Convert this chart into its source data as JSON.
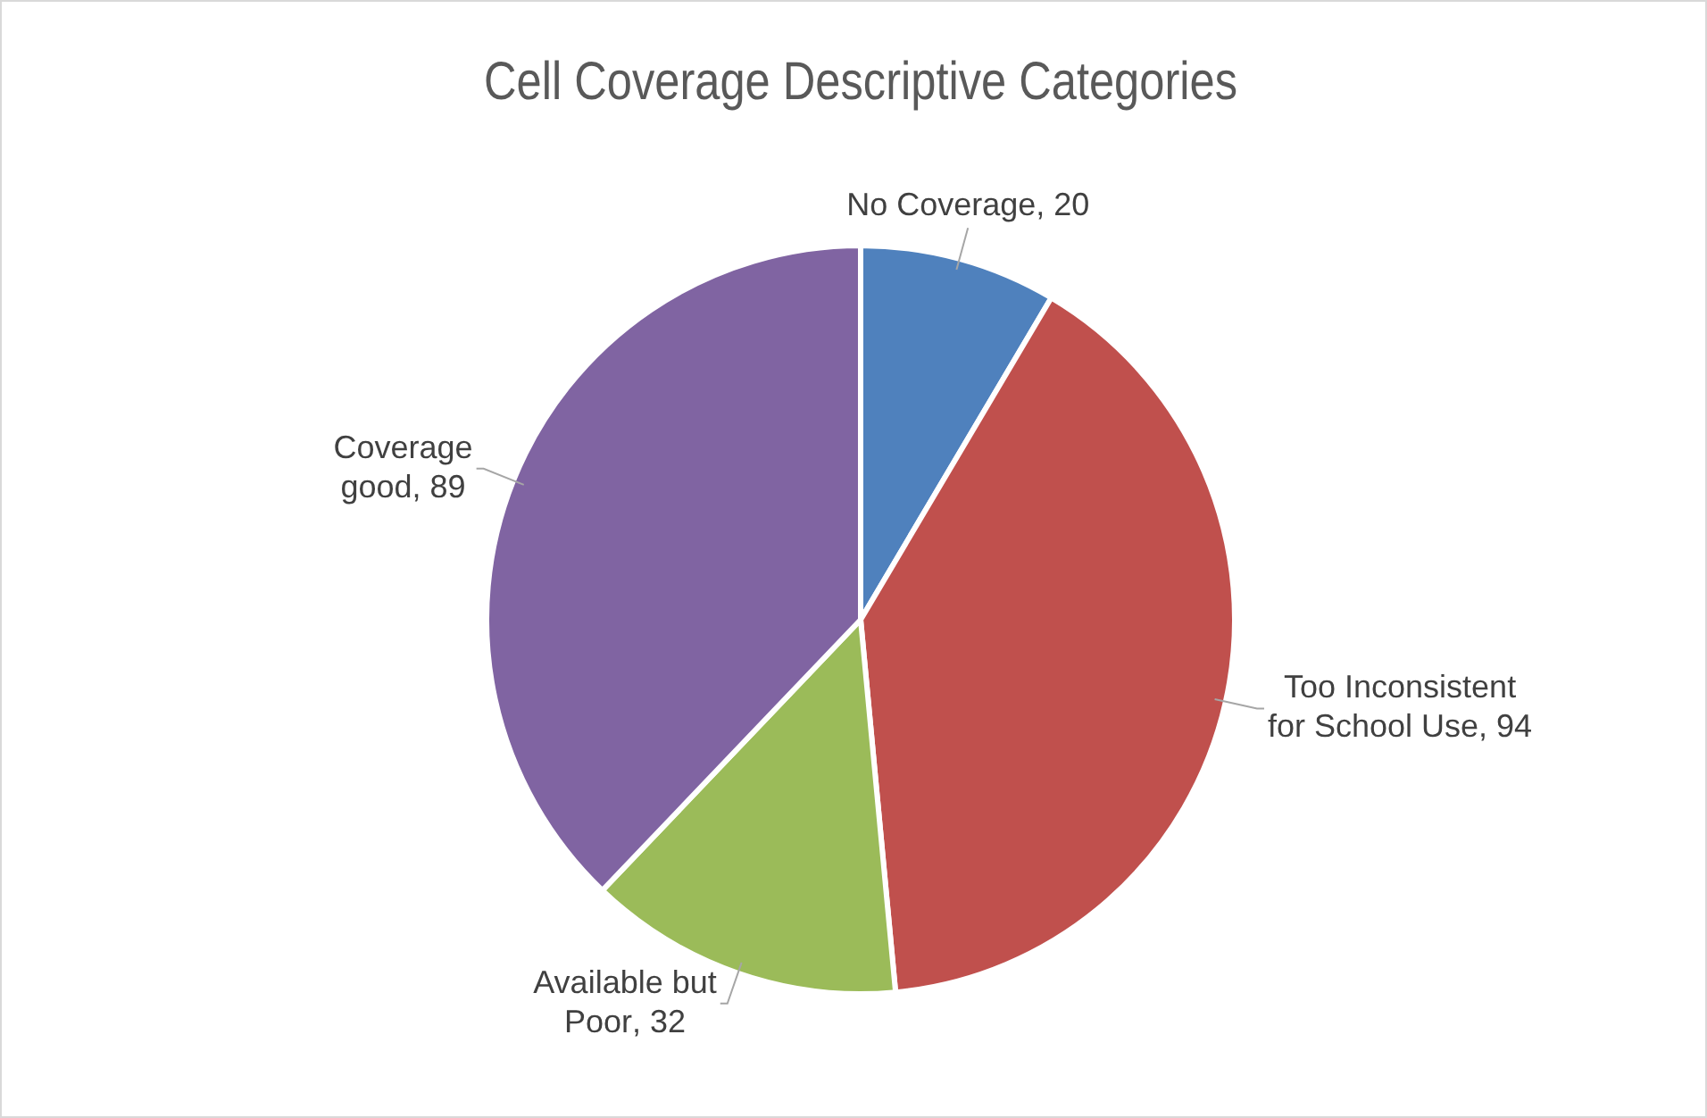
{
  "chart_data": {
    "type": "pie",
    "title": "Cell Coverage Descriptive Categories",
    "categories": [
      "No Coverage",
      "Too Inconsistent for School Use",
      "Available but Poor",
      "Coverage good"
    ],
    "values": [
      20,
      94,
      32,
      89
    ],
    "colors": [
      "#4f81bd",
      "#c0504d",
      "#9bbb59",
      "#8064a2"
    ],
    "value_labels": [
      ", 20",
      ", 94",
      ", 32",
      ", 89"
    ],
    "legend": false
  }
}
